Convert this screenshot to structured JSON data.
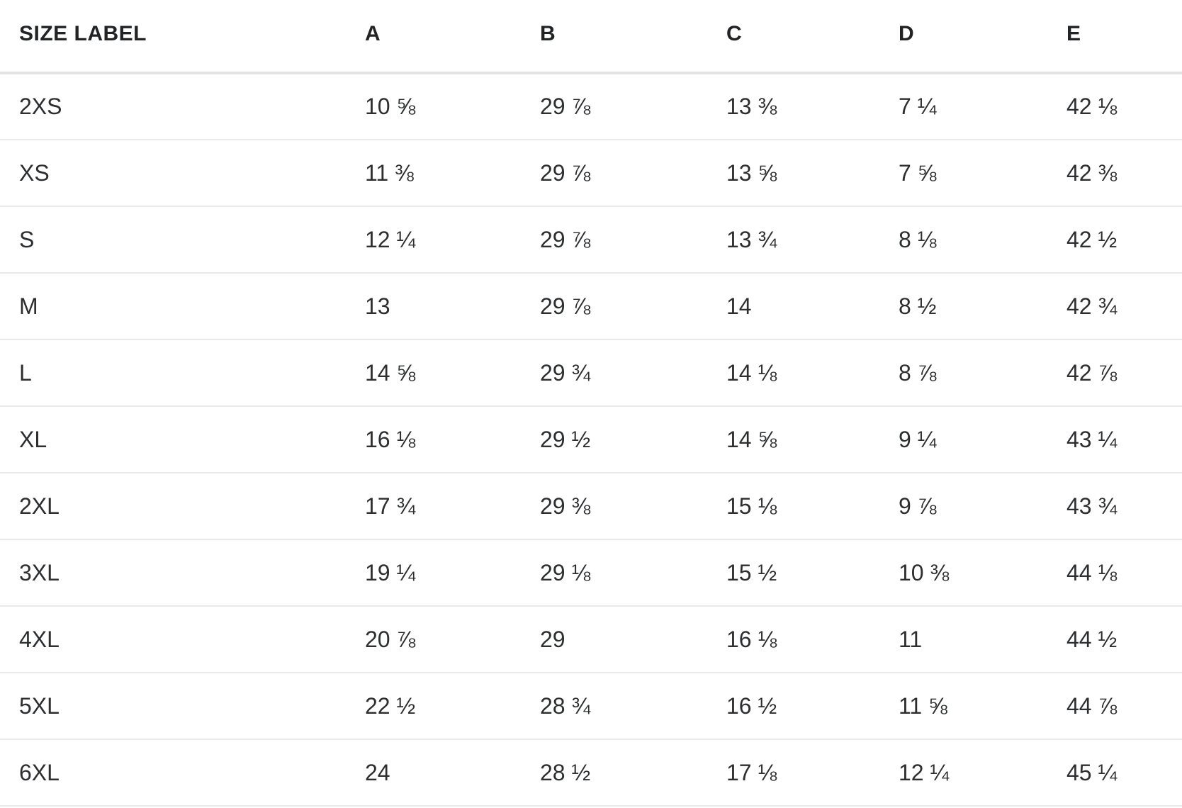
{
  "table": {
    "columns": [
      "SIZE LABEL",
      "A",
      "B",
      "C",
      "D",
      "E"
    ],
    "rows": [
      {
        "label": "2XS",
        "values": [
          "10 ⅝",
          "29 ⅞",
          "13 ⅜",
          "7 ¼",
          "42 ⅛"
        ]
      },
      {
        "label": "XS",
        "values": [
          "11 ⅜",
          "29 ⅞",
          "13 ⅝",
          "7 ⅝",
          "42 ⅜"
        ]
      },
      {
        "label": "S",
        "values": [
          "12 ¼",
          "29 ⅞",
          "13 ¾",
          "8 ⅛",
          "42 ½"
        ]
      },
      {
        "label": "M",
        "values": [
          "13",
          "29 ⅞",
          "14",
          "8 ½",
          "42 ¾"
        ]
      },
      {
        "label": "L",
        "values": [
          "14 ⅝",
          "29 ¾",
          "14 ⅛",
          "8 ⅞",
          "42 ⅞"
        ]
      },
      {
        "label": "XL",
        "values": [
          "16 ⅛",
          "29 ½",
          "14 ⅝",
          "9 ¼",
          "43 ¼"
        ]
      },
      {
        "label": "2XL",
        "values": [
          "17 ¾",
          "29 ⅜",
          "15 ⅛",
          "9 ⅞",
          "43 ¾"
        ]
      },
      {
        "label": "3XL",
        "values": [
          "19 ¼",
          "29 ⅛",
          "15 ½",
          "10 ⅜",
          "44 ⅛"
        ]
      },
      {
        "label": "4XL",
        "values": [
          "20 ⅞",
          "29",
          "16 ⅛",
          "11",
          "44 ½"
        ]
      },
      {
        "label": "5XL",
        "values": [
          "22 ½",
          "28 ¾",
          "16 ½",
          "11 ⅝",
          "44 ⅞"
        ]
      },
      {
        "label": "6XL",
        "values": [
          "24",
          "28 ½",
          "17 ⅛",
          "12 ¼",
          "45 ¼"
        ]
      }
    ]
  },
  "colors": {
    "background": "#ffffff",
    "header_text": "#212325",
    "body_text": "#2c2e30",
    "header_border": "#e2e2e2",
    "row_border": "#e9e9e9"
  }
}
